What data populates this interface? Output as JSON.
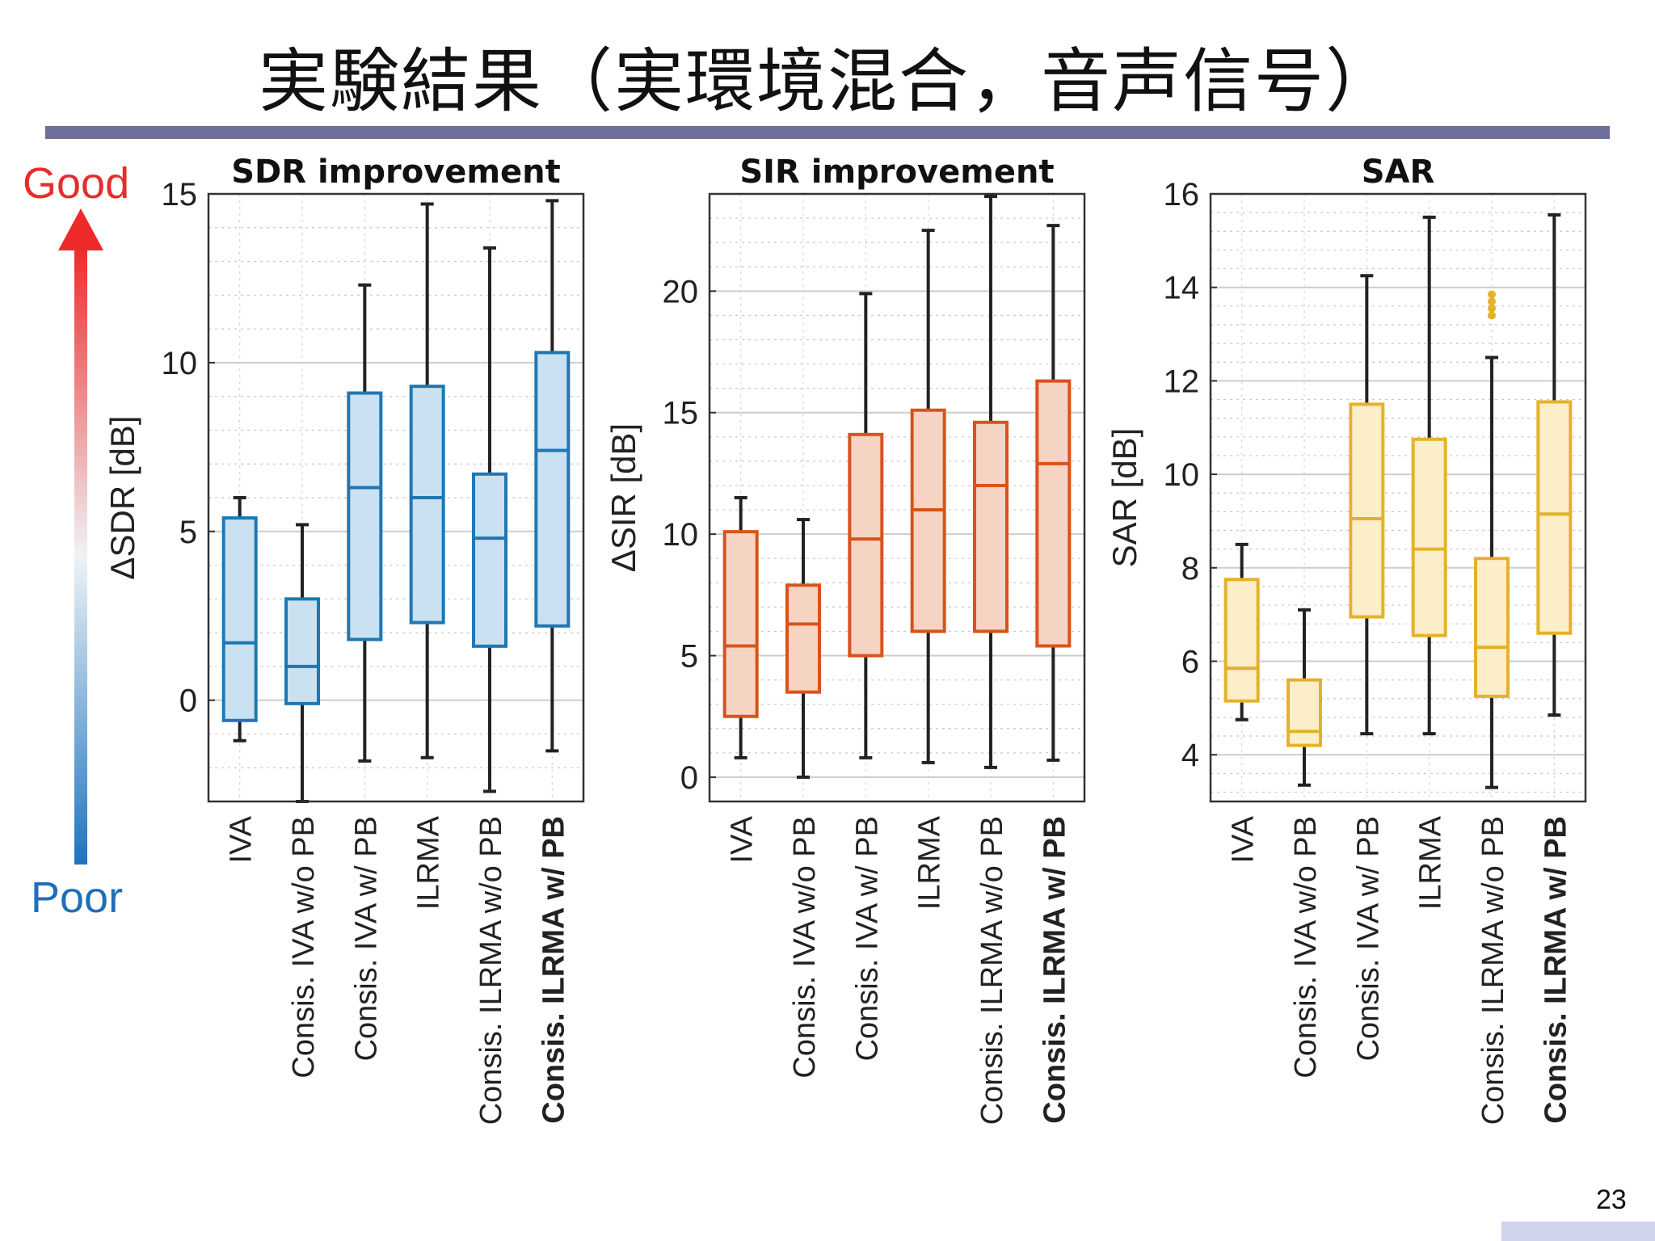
{
  "slide": {
    "title": "実験結果（実環境混合，音声信号）",
    "good_label": "Good",
    "poor_label": "Poor",
    "page_number": "23",
    "good_color": "#e82c2c",
    "poor_color": "#1f6fb8"
  },
  "chart_data": [
    {
      "type": "box",
      "title": "SDR improvement",
      "ylabel": "ΔSDR [dB]",
      "ylim": [
        -3,
        15
      ],
      "yticks": [
        0,
        5,
        10,
        15
      ],
      "grid": true,
      "color": "#1f77b4",
      "fill": "#c9e1f0",
      "categories": [
        "IVA",
        "Consis. IVA w/o PB",
        "Consis. IVA w/ PB",
        "ILRMA",
        "Consis. ILRMA w/o PB",
        "Consis. ILRMA w/ PB"
      ],
      "category_prefix_bold": [
        false,
        false,
        false,
        false,
        false,
        true
      ],
      "category_suffix_bold": [
        false,
        false,
        false,
        false,
        false,
        true
      ],
      "category_prefix": [
        "",
        "Consis. ",
        "Consis. ",
        "",
        "Consis. ",
        "Consis. "
      ],
      "category_suffix": [
        "IVA",
        "IVA w/o PB",
        "IVA w/ PB",
        "ILRMA",
        "ILRMA w/o PB",
        "ILRMA w/ PB"
      ],
      "boxes": [
        {
          "whisker_low": -1.2,
          "q1": -0.6,
          "median": 1.7,
          "q3": 5.4,
          "whisker_high": 6.0,
          "outliers": []
        },
        {
          "whisker_low": -3.0,
          "q1": -0.1,
          "median": 1.0,
          "q3": 3.0,
          "whisker_high": 5.2,
          "outliers": []
        },
        {
          "whisker_low": -1.8,
          "q1": 1.8,
          "median": 6.3,
          "q3": 9.1,
          "whisker_high": 12.3,
          "outliers": []
        },
        {
          "whisker_low": -1.7,
          "q1": 2.3,
          "median": 6.0,
          "q3": 9.3,
          "whisker_high": 14.7,
          "outliers": []
        },
        {
          "whisker_low": -2.7,
          "q1": 1.6,
          "median": 4.8,
          "q3": 6.7,
          "whisker_high": 13.4,
          "outliers": []
        },
        {
          "whisker_low": -1.5,
          "q1": 2.2,
          "median": 7.4,
          "q3": 10.3,
          "whisker_high": 14.8,
          "outliers": []
        }
      ]
    },
    {
      "type": "box",
      "title": "SIR improvement",
      "ylabel": "ΔSIR [dB]",
      "ylim": [
        -1,
        24
      ],
      "yticks": [
        0,
        5,
        10,
        15,
        20
      ],
      "grid": true,
      "color": "#d95319",
      "fill": "#f6d4c4",
      "categories": [
        "IVA",
        "Consis. IVA w/o PB",
        "Consis. IVA w/ PB",
        "ILRMA",
        "Consis. ILRMA w/o PB",
        "Consis. ILRMA w/ PB"
      ],
      "category_prefix_bold": [
        false,
        false,
        false,
        false,
        false,
        true
      ],
      "category_suffix_bold": [
        false,
        false,
        false,
        false,
        false,
        true
      ],
      "category_prefix": [
        "",
        "Consis. ",
        "Consis. ",
        "",
        "Consis. ",
        "Consis. "
      ],
      "category_suffix": [
        "IVA",
        "IVA w/o PB",
        "IVA w/ PB",
        "ILRMA",
        "ILRMA w/o PB",
        "ILRMA w/ PB"
      ],
      "boxes": [
        {
          "whisker_low": 0.8,
          "q1": 2.5,
          "median": 5.4,
          "q3": 10.1,
          "whisker_high": 11.5,
          "outliers": []
        },
        {
          "whisker_low": 0.0,
          "q1": 3.5,
          "median": 6.3,
          "q3": 7.9,
          "whisker_high": 10.6,
          "outliers": []
        },
        {
          "whisker_low": 0.8,
          "q1": 5.0,
          "median": 9.8,
          "q3": 14.1,
          "whisker_high": 19.9,
          "outliers": []
        },
        {
          "whisker_low": 0.6,
          "q1": 6.0,
          "median": 11.0,
          "q3": 15.1,
          "whisker_high": 22.5,
          "outliers": []
        },
        {
          "whisker_low": 0.4,
          "q1": 6.0,
          "median": 12.0,
          "q3": 14.6,
          "whisker_high": 23.9,
          "outliers": []
        },
        {
          "whisker_low": 0.7,
          "q1": 5.4,
          "median": 12.9,
          "q3": 16.3,
          "whisker_high": 22.7,
          "outliers": []
        }
      ]
    },
    {
      "type": "box",
      "title": "SAR",
      "ylabel": "SAR [dB]",
      "ylim": [
        3,
        16
      ],
      "yticks": [
        4,
        6,
        8,
        10,
        12,
        14,
        16
      ],
      "grid": true,
      "color": "#e6b12a",
      "fill": "#fbeec9",
      "categories": [
        "IVA",
        "Consis. IVA w/o PB",
        "Consis. IVA w/ PB",
        "ILRMA",
        "Consis. ILRMA w/o PB",
        "Consis. ILRMA w/ PB"
      ],
      "category_prefix_bold": [
        false,
        false,
        false,
        false,
        false,
        true
      ],
      "category_suffix_bold": [
        false,
        false,
        false,
        false,
        false,
        true
      ],
      "category_prefix": [
        "",
        "Consis. ",
        "Consis. ",
        "",
        "Consis. ",
        "Consis. "
      ],
      "category_suffix": [
        "IVA",
        "IVA w/o PB",
        "IVA w/ PB",
        "ILRMA",
        "ILRMA w/o PB",
        "ILRMA w/ PB"
      ],
      "boxes": [
        {
          "whisker_low": 4.75,
          "q1": 5.15,
          "median": 5.85,
          "q3": 7.75,
          "whisker_high": 8.5,
          "outliers": []
        },
        {
          "whisker_low": 3.35,
          "q1": 4.2,
          "median": 4.5,
          "q3": 5.6,
          "whisker_high": 7.1,
          "outliers": []
        },
        {
          "whisker_low": 4.45,
          "q1": 6.95,
          "median": 9.05,
          "q3": 11.5,
          "whisker_high": 14.25,
          "outliers": []
        },
        {
          "whisker_low": 4.45,
          "q1": 6.55,
          "median": 8.4,
          "q3": 10.75,
          "whisker_high": 15.5,
          "outliers": []
        },
        {
          "whisker_low": 3.3,
          "q1": 5.25,
          "median": 6.3,
          "q3": 8.2,
          "whisker_high": 12.5,
          "outliers": [
            13.4,
            13.55,
            13.7,
            13.85
          ]
        },
        {
          "whisker_low": 4.85,
          "q1": 6.6,
          "median": 9.15,
          "q3": 11.55,
          "whisker_high": 15.55,
          "outliers": []
        }
      ]
    }
  ]
}
